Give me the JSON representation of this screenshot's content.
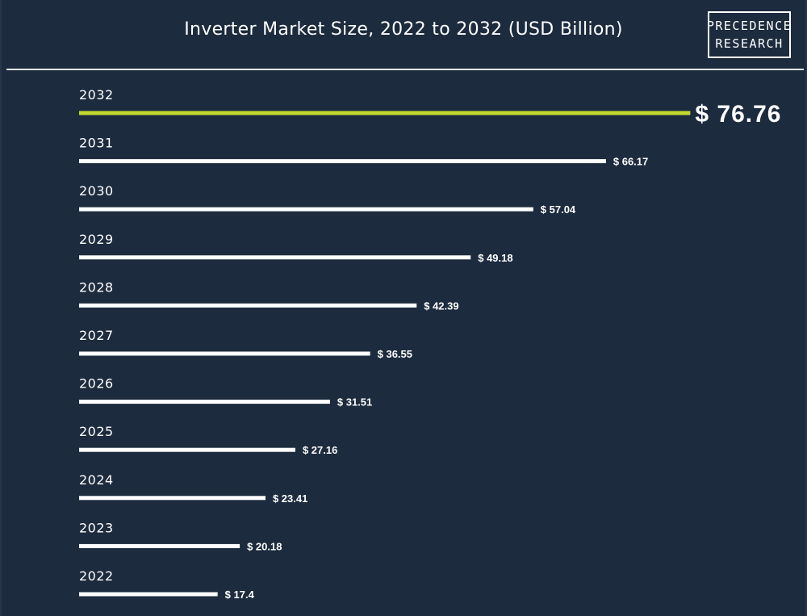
{
  "chart_data": {
    "type": "bar",
    "orientation": "horizontal",
    "title": "Inverter Market Size, 2022 to 2032 (USD Billion)",
    "categories": [
      "2032",
      "2031",
      "2030",
      "2029",
      "2028",
      "2027",
      "2026",
      "2025",
      "2024",
      "2023",
      "2022"
    ],
    "values": [
      76.76,
      66.17,
      57.04,
      49.18,
      42.39,
      36.55,
      31.51,
      27.16,
      23.41,
      20.18,
      17.4
    ],
    "value_labels": [
      "$ 76.76",
      "$ 66.17",
      "$ 57.04",
      "$ 49.18",
      "$ 42.39",
      "$ 36.55",
      "$ 31.51",
      "$ 27.16",
      "$ 23.41",
      "$ 20.18",
      "$ 17.4"
    ],
    "highlight_category": "2032",
    "xlim": [
      0,
      82.5
    ],
    "grid": false,
    "legend": "none",
    "xlabel": "",
    "ylabel": ""
  },
  "brand": {
    "line1": "PRECEDENCE",
    "line2": "RESEARCH"
  },
  "colors": {
    "background": "#1d2b3e",
    "bar": "#ffffff",
    "highlight": "#c3d82e",
    "text": "#ffffff"
  }
}
